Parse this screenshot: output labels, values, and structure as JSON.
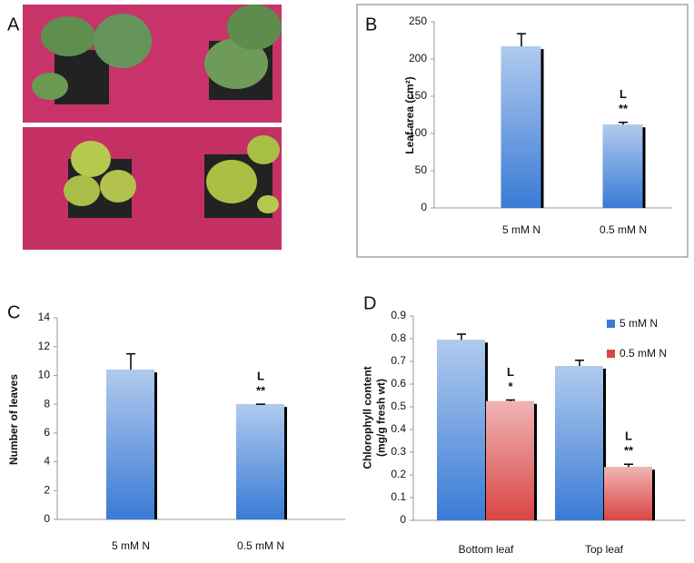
{
  "photo_panel": {
    "label": "A"
  },
  "chart_data": [
    {
      "type": "bar",
      "panel_label": "B",
      "ylabel": [
        "Leaf area (cm²)"
      ],
      "categories": [
        "5 mM N",
        "0.5 mM N"
      ],
      "values": [
        217,
        112
      ],
      "errors": [
        17,
        3
      ],
      "color": "#3a7bd5",
      "letter_labels": [
        null,
        "L"
      ],
      "star_labels": [
        null,
        "**"
      ],
      "ylim": [
        0,
        250
      ],
      "yticks": [
        0,
        50,
        100,
        150,
        200,
        250
      ],
      "frame": true
    },
    {
      "type": "bar",
      "panel_label": "C",
      "ylabel": [
        "Number of leaves"
      ],
      "categories": [
        "5 mM N",
        "0.5 mM N"
      ],
      "values": [
        10.4,
        8.0
      ],
      "errors": [
        1.1,
        0
      ],
      "color": "#3a7bd5",
      "letter_labels": [
        null,
        "L"
      ],
      "star_labels": [
        null,
        "**"
      ],
      "ylim": [
        0,
        14
      ],
      "yticks": [
        0,
        2,
        4,
        6,
        8,
        10,
        12,
        14
      ],
      "frame": false
    },
    {
      "type": "bar",
      "panel_label": "D",
      "ylabel": [
        "Chlorophyll content",
        "(mg/g fresh wt)"
      ],
      "categories": [
        "Bottom leaf",
        "Top leaf"
      ],
      "series": [
        {
          "name": "5 mM N",
          "color": "#3a7bd5",
          "values": [
            0.795,
            0.68
          ],
          "errors": [
            0.025,
            0.025
          ]
        },
        {
          "name": "0.5 mM N",
          "color": "#d94545",
          "values": [
            0.525,
            0.235
          ],
          "errors": [
            0.005,
            0.012
          ],
          "letter_labels": [
            "L",
            "L"
          ],
          "star_labels": [
            "*",
            "**"
          ]
        }
      ],
      "ylim": [
        0,
        0.9
      ],
      "yticks": [
        0,
        0.1,
        0.2,
        0.3,
        0.4,
        0.5,
        0.6,
        0.7,
        0.8,
        0.9
      ],
      "legend": "top-right",
      "frame": false
    }
  ]
}
